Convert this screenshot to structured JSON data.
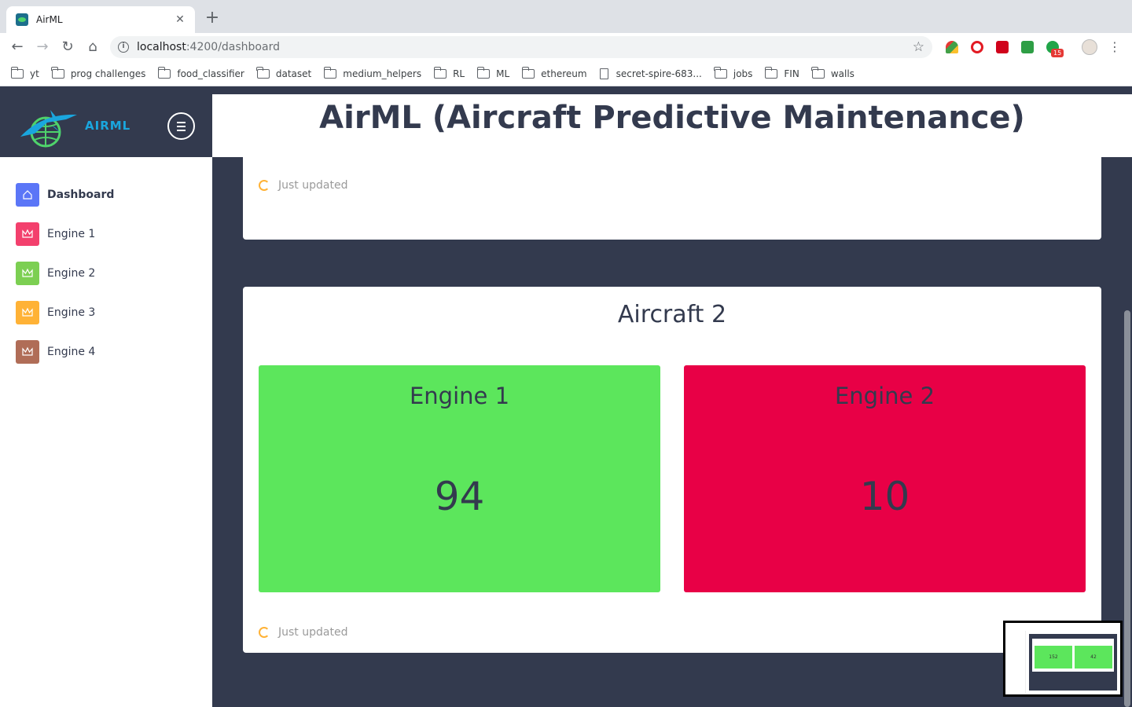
{
  "browser": {
    "tab_title": "AirML",
    "url_host": "localhost",
    "url_path": ":4200/dashboard",
    "ext_badge": "15",
    "bookmarks": [
      "yt",
      "prog challenges",
      "food_classifier",
      "dataset",
      "medium_helpers",
      "RL",
      "ML",
      "ethereum",
      "secret-spire-683...",
      "jobs",
      "FIN",
      "walls"
    ]
  },
  "app": {
    "logo_text": "AIRML",
    "page_title": "AirML (Aircraft Predictive Maintenance)",
    "sidebar": {
      "items": [
        {
          "label": "Dashboard",
          "color": "#5b76f7"
        },
        {
          "label": "Engine 1",
          "color": "#f3406d"
        },
        {
          "label": "Engine 2",
          "color": "#7ccf52"
        },
        {
          "label": "Engine 3",
          "color": "#ffb236"
        },
        {
          "label": "Engine 4",
          "color": "#b06d57"
        }
      ]
    },
    "aircraft_1": {
      "status_text": "Just updated"
    },
    "aircraft_2": {
      "title": "Aircraft 2",
      "engines": [
        {
          "name": "Engine 1",
          "value": "94",
          "color": "#5ce65c"
        },
        {
          "name": "Engine 2",
          "value": "10",
          "color": "#e80046"
        }
      ],
      "status_text": "Just updated"
    },
    "thumbnail": {
      "values": [
        "152",
        "42"
      ]
    }
  }
}
